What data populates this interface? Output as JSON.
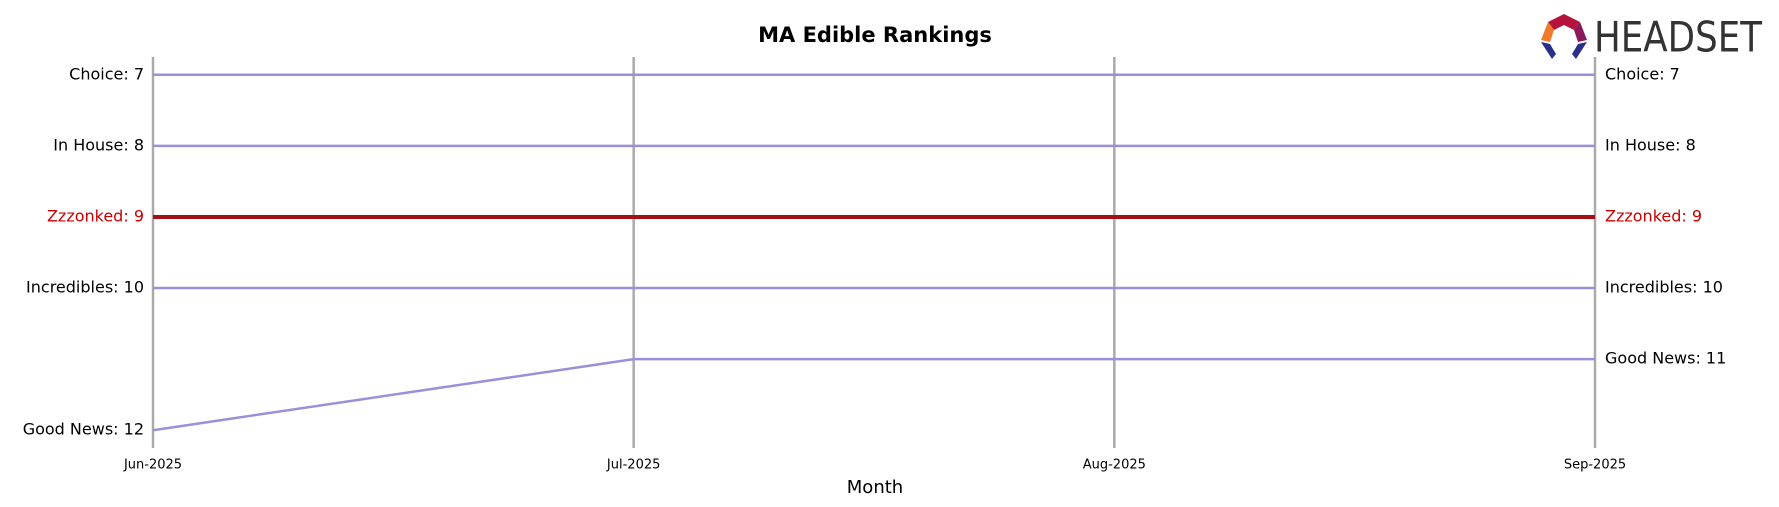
{
  "chart_data": {
    "type": "bump",
    "title": "MA Edible Rankings",
    "x_label": "Month",
    "logo": "HEADSET",
    "categories": [
      "Jun-2025",
      "Jul-2025",
      "Aug-2025",
      "Sep-2025"
    ],
    "ylim": [
      12.25,
      6.75
    ],
    "series": [
      {
        "name": "Choice",
        "color": "#9b8fd8",
        "label_color": "#000000",
        "width": 2.5,
        "values": [
          7,
          7,
          7,
          7
        ],
        "start_label": "Choice: 7",
        "end_label": "Choice: 7"
      },
      {
        "name": "In House",
        "color": "#9b8fd8",
        "label_color": "#000000",
        "width": 2.5,
        "values": [
          8,
          8,
          8,
          8
        ],
        "start_label": "In House: 8",
        "end_label": "In House: 8"
      },
      {
        "name": "Zzzonked",
        "color": "#a50f15",
        "label_color": "#cc0000",
        "width": 4,
        "values": [
          9,
          9,
          9,
          9
        ],
        "start_label": "Zzzonked: 9",
        "end_label": "Zzzonked: 9"
      },
      {
        "name": "Incredibles",
        "color": "#9b8fd8",
        "label_color": "#000000",
        "width": 2.5,
        "values": [
          10,
          10,
          10,
          10
        ],
        "start_label": "Incredibles: 10",
        "end_label": "Incredibles: 10"
      },
      {
        "name": "Good News",
        "color": "#9b8fd8",
        "label_color": "#000000",
        "width": 2.5,
        "values": [
          12,
          11,
          11,
          11
        ],
        "start_label": "Good News: 12",
        "end_label": "Good News: 11"
      }
    ]
  }
}
